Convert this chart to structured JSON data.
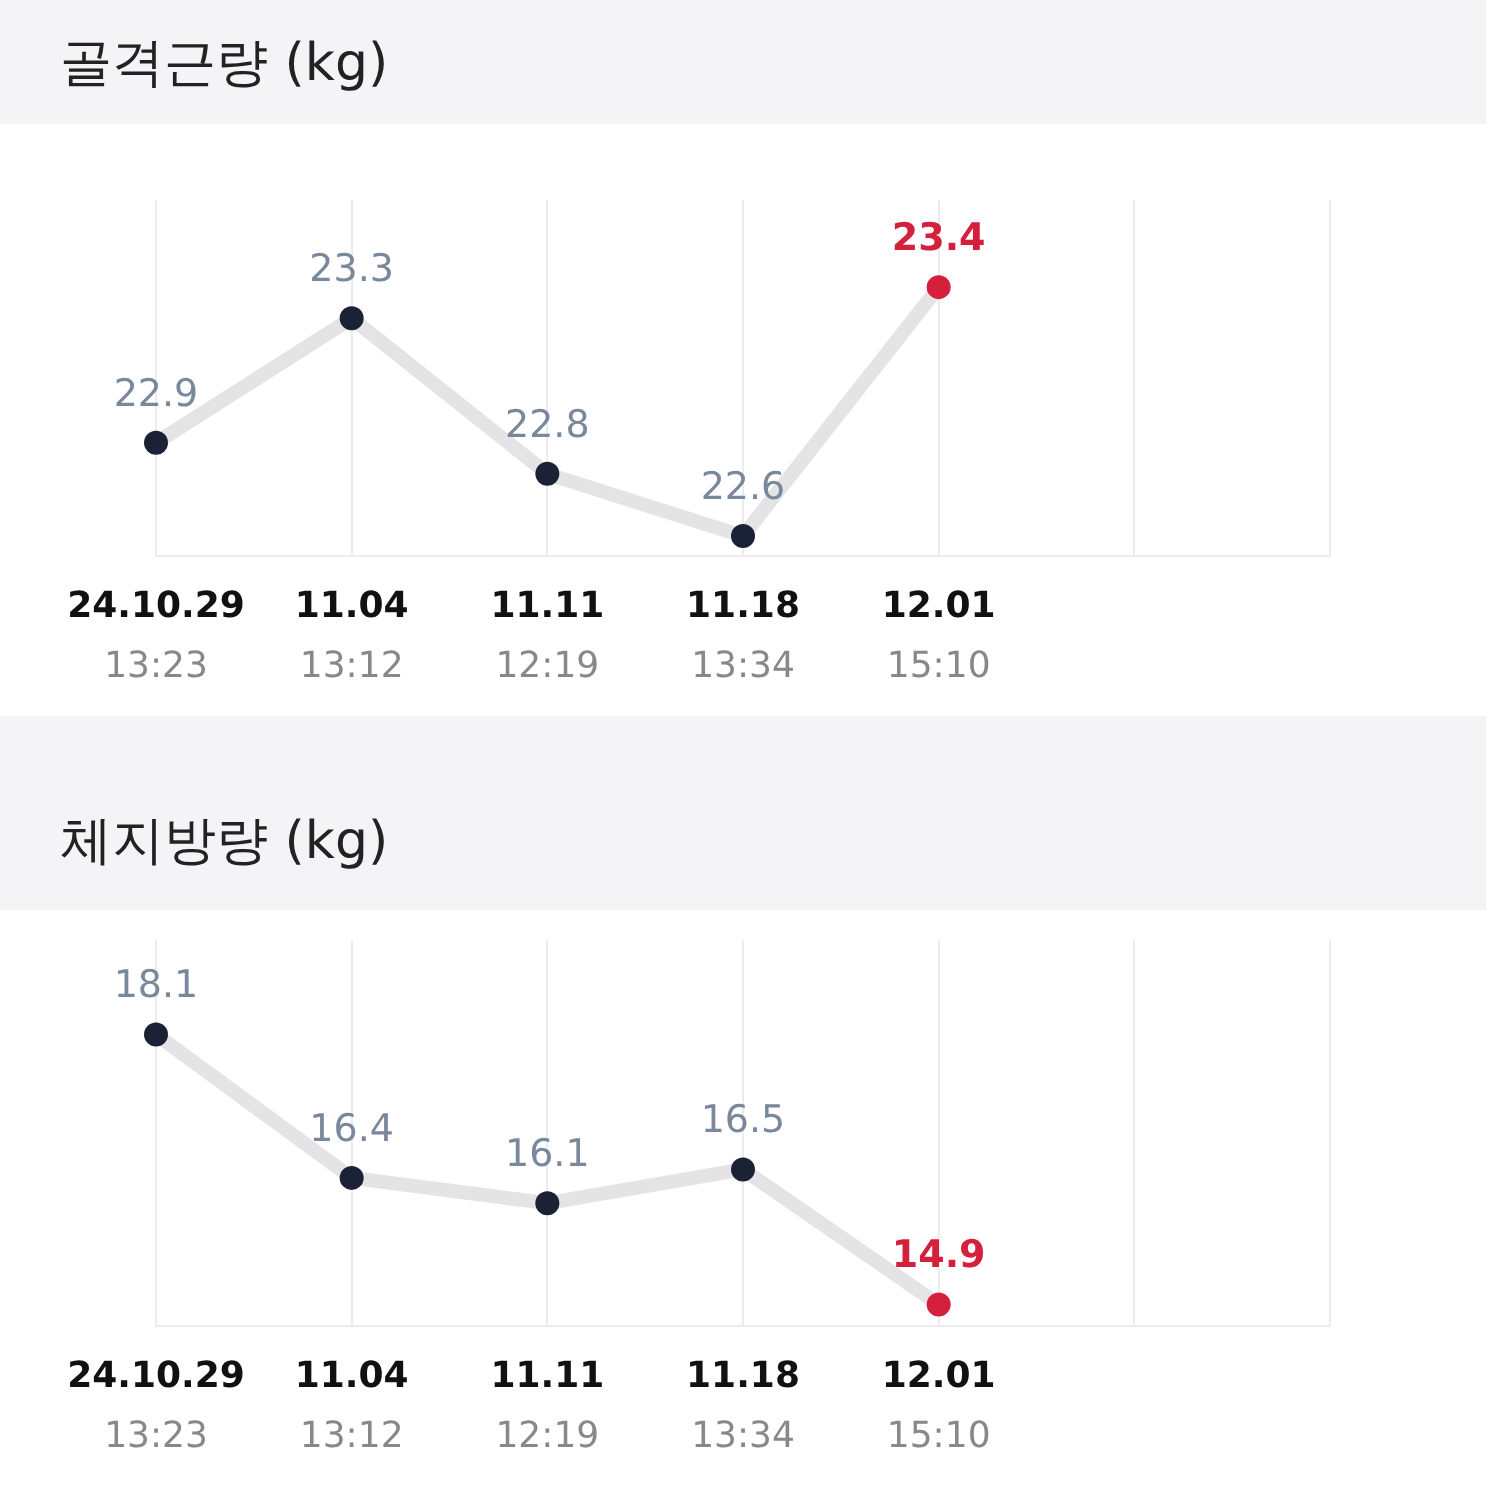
{
  "chart_data": [
    {
      "type": "line",
      "title": "골격근량 (kg)",
      "categories": [
        "24.10.29\n13:23",
        "11.04\n13:12",
        "11.11\n12:19",
        "11.18\n13:34",
        "12.01\n15:10",
        null,
        null
      ],
      "series": [
        {
          "color": "#e4e4e6",
          "colors": [
            "#1c2235",
            "#1c2235",
            "#1c2235",
            "#1c2235",
            "#d4203c",
            "#1c2235",
            "#1c2235"
          ],
          "values": [
            22.9,
            23.3,
            22.8,
            22.6,
            23.4,
            null,
            null
          ]
        }
      ],
      "data_labels": true,
      "grid": "x",
      "legend": false,
      "marker": "circle",
      "line_style": "solid",
      "tick_labels": "x"
    },
    {
      "type": "line",
      "title": "체지방량 (kg)",
      "categories": [
        "24.10.29\n13:23",
        "11.04\n13:12",
        "11.11\n12:19",
        "11.18\n13:34",
        "12.01\n15:10",
        null,
        null
      ],
      "series": [
        {
          "color": "#e4e4e6",
          "colors": [
            "#1c2235",
            "#1c2235",
            "#1c2235",
            "#1c2235",
            "#d4203c",
            "#1c2235",
            "#1c2235"
          ],
          "values": [
            18.1,
            16.4,
            16.1,
            16.5,
            14.9,
            null,
            null
          ]
        }
      ],
      "data_labels": true,
      "grid": "x",
      "legend": false,
      "marker": "circle",
      "line_style": "solid",
      "tick_labels": "x"
    }
  ]
}
